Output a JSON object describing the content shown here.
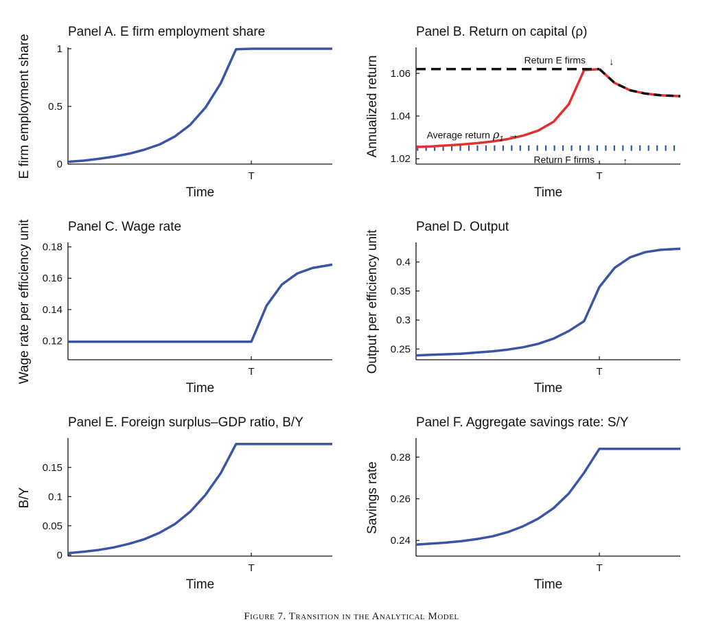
{
  "caption": "Figure 7. Transition in the Analytical Model",
  "colors": {
    "series": "#3a55a4",
    "average": "#e03030",
    "dashed": "#111111",
    "f_firms": "#3a55a4",
    "axis": "#111111"
  },
  "chart_data": [
    {
      "id": "A",
      "type": "line",
      "title": "Panel A. E firm employment share",
      "xlabel": "Time",
      "ylabel": "E firm employment share",
      "xtick_labels": [
        {
          "x": 12,
          "label": "T"
        }
      ],
      "xlim": [
        0,
        17.3
      ],
      "ylim": [
        0,
        1
      ],
      "yticks": [
        0,
        0.5,
        1
      ],
      "ytick_labels": [
        "0",
        "0.5",
        "1"
      ],
      "series": [
        {
          "x": [
            0,
            1,
            2,
            3,
            4,
            5,
            6,
            7,
            8,
            9,
            10,
            11,
            12,
            13,
            14,
            15,
            16,
            17.3
          ],
          "y": [
            0.02,
            0.03,
            0.045,
            0.065,
            0.09,
            0.125,
            0.17,
            0.24,
            0.34,
            0.49,
            0.7,
            0.995,
            1,
            1,
            1,
            1,
            1,
            1
          ]
        }
      ]
    },
    {
      "id": "B",
      "type": "line",
      "title": "Panel B. Return on capital (ρ)",
      "xlabel": "Time",
      "ylabel": "Annualized return",
      "xtick_labels": [
        {
          "x": 12,
          "label": "T"
        }
      ],
      "xlim": [
        0,
        17.3
      ],
      "ylim": [
        1.0175,
        1.0715
      ],
      "yticks": [
        1.02,
        1.04,
        1.06
      ],
      "ytick_labels": [
        "1.02",
        "1.04",
        "1.06"
      ],
      "annotations": [
        {
          "text": "Return E firms",
          "arrow": "↓"
        },
        {
          "text": "Average return",
          "symbol": "ρ",
          "subscript": "1",
          "arrow": "→"
        },
        {
          "text": "Return F firms",
          "arrow": "↑"
        }
      ],
      "series": [
        {
          "name": "Return E firms",
          "x": [
            0,
            12
          ],
          "y": [
            1.062,
            1.062
          ]
        },
        {
          "name": "Average return",
          "x": [
            0,
            1,
            2,
            3,
            4,
            5,
            6,
            7,
            8,
            9,
            10,
            11,
            12
          ],
          "y": [
            1.0255,
            1.0258,
            1.0262,
            1.0267,
            1.0273,
            1.0281,
            1.0292,
            1.0308,
            1.0332,
            1.0373,
            1.0455,
            1.0615,
            1.062
          ]
        },
        {
          "name": "Return after T",
          "x": [
            12,
            13,
            14,
            15,
            16,
            17.3
          ],
          "y": [
            1.062,
            1.0555,
            1.0521,
            1.0505,
            1.0497,
            1.0493
          ]
        },
        {
          "name": "Return F firms",
          "x": [
            0,
            17.3
          ],
          "y": [
            1.025,
            1.025
          ]
        }
      ]
    },
    {
      "id": "C",
      "type": "line",
      "title": "Panel C. Wage rate",
      "xlabel": "Time",
      "ylabel": "Wage rate per efficiency unit",
      "xtick_labels": [
        {
          "x": 12,
          "label": "T"
        }
      ],
      "xlim": [
        0,
        17.3
      ],
      "ylim": [
        0.108,
        0.182
      ],
      "yticks": [
        0.12,
        0.14,
        0.16,
        0.18
      ],
      "ytick_labels": [
        "0.12",
        "0.14",
        "0.16",
        "0.18"
      ],
      "series": [
        {
          "x": [
            0,
            12,
            13,
            14,
            15,
            16,
            17.3
          ],
          "y": [
            0.1195,
            0.1195,
            0.1425,
            0.156,
            0.163,
            0.1665,
            0.1687
          ]
        }
      ]
    },
    {
      "id": "D",
      "type": "line",
      "title": "Panel D. Output",
      "xlabel": "Time",
      "ylabel": "Output per efficiency unit",
      "xtick_labels": [
        {
          "x": 12,
          "label": "T"
        }
      ],
      "xlim": [
        0,
        17.3
      ],
      "ylim": [
        0.2315,
        0.4315
      ],
      "yticks": [
        0.25,
        0.3,
        0.35,
        0.4
      ],
      "ytick_labels": [
        "0.25",
        "0.3",
        "0.35",
        "0.4"
      ],
      "series": [
        {
          "x": [
            0,
            1,
            2,
            3,
            4,
            5,
            6,
            7,
            8,
            9,
            10,
            11,
            12,
            13,
            14,
            15,
            16,
            17.3
          ],
          "y": [
            0.239,
            0.24,
            0.241,
            0.242,
            0.244,
            0.246,
            0.249,
            0.253,
            0.259,
            0.268,
            0.281,
            0.298,
            0.357,
            0.39,
            0.408,
            0.417,
            0.421,
            0.423
          ]
        }
      ]
    },
    {
      "id": "E",
      "type": "line",
      "title": "Panel E. Foreign surplus–GDP ratio, B/Y",
      "xlabel": "Time",
      "ylabel": "B/Y",
      "xtick_labels": [
        {
          "x": 12,
          "label": "T"
        }
      ],
      "xlim": [
        0,
        17.3
      ],
      "ylim": [
        -0.002,
        0.198
      ],
      "yticks": [
        0,
        0.05,
        0.1,
        0.15
      ],
      "ytick_labels": [
        "0",
        "0.05",
        "0.1",
        "0.15"
      ],
      "series": [
        {
          "x": [
            0,
            1,
            2,
            3,
            4,
            5,
            6,
            7,
            8,
            9,
            10,
            11,
            12,
            13,
            14,
            15,
            16,
            17.3
          ],
          "y": [
            0.003,
            0.0055,
            0.0085,
            0.013,
            0.019,
            0.027,
            0.038,
            0.053,
            0.074,
            0.103,
            0.14,
            0.19,
            0.19,
            0.19,
            0.19,
            0.19,
            0.19,
            0.19
          ]
        }
      ]
    },
    {
      "id": "F",
      "type": "line",
      "title": "Panel F. Aggregate savings rate: S/Y",
      "xlabel": "Time",
      "ylabel": "Savings rate",
      "xtick_labels": [
        {
          "x": 12,
          "label": "T"
        }
      ],
      "xlim": [
        0,
        17.3
      ],
      "ylim": [
        0.2325,
        0.2885
      ],
      "yticks": [
        0.24,
        0.26,
        0.28
      ],
      "ytick_labels": [
        "0.24",
        "0.26",
        "0.28"
      ],
      "series": [
        {
          "x": [
            0,
            1,
            2,
            3,
            4,
            5,
            6,
            7,
            8,
            9,
            10,
            11,
            12,
            13,
            14,
            15,
            16,
            17.3
          ],
          "y": [
            0.238,
            0.2385,
            0.239,
            0.2397,
            0.2407,
            0.242,
            0.244,
            0.2468,
            0.2505,
            0.2555,
            0.2625,
            0.2725,
            0.284,
            0.284,
            0.284,
            0.284,
            0.284,
            0.284
          ]
        }
      ]
    }
  ]
}
